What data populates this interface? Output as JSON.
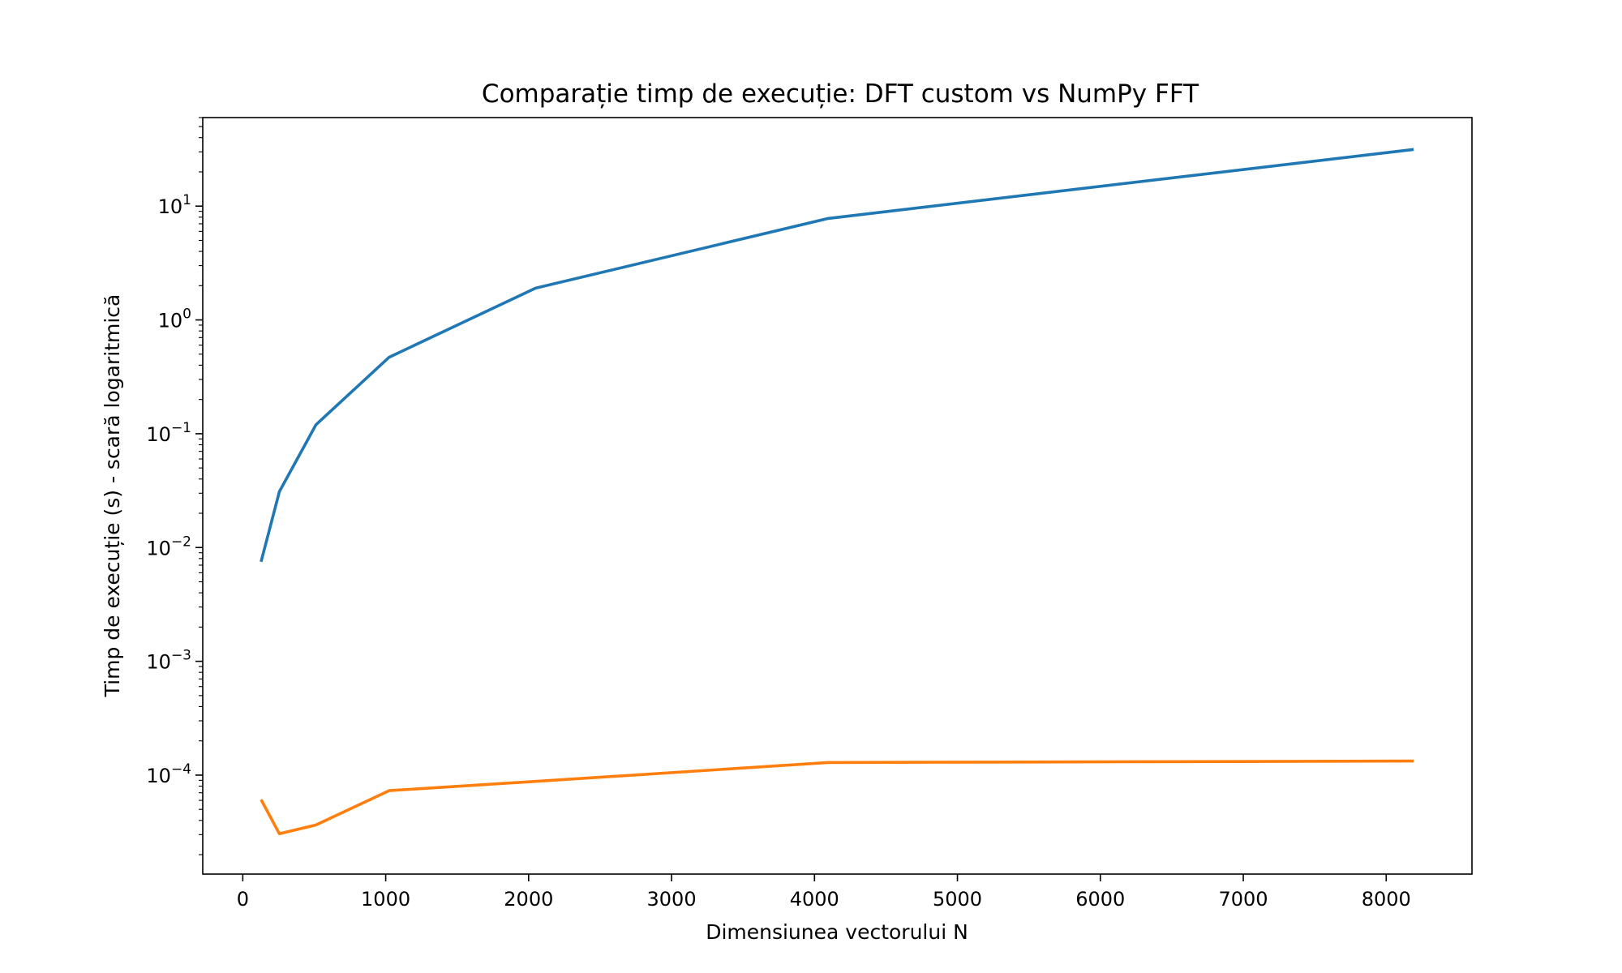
{
  "chart_data": {
    "type": "line",
    "title": "Comparație timp de execuție: DFT custom vs NumPy FFT",
    "xlabel": "Dimensiunea vectorului N",
    "ylabel": "Timp de execuție (s) - scară logaritmică",
    "xscale": "linear",
    "yscale": "log",
    "xlim": [
      -280,
      8600
    ],
    "ylim": [
      1.35e-05,
      60
    ],
    "xticks": [
      0,
      1000,
      2000,
      3000,
      4000,
      5000,
      6000,
      7000,
      8000
    ],
    "xtick_labels": [
      "0",
      "1000",
      "2000",
      "3000",
      "4000",
      "5000",
      "6000",
      "7000",
      "8000"
    ],
    "yticks": [
      0.0001,
      0.001,
      0.01,
      0.1,
      1,
      10
    ],
    "ytick_labels": [
      {
        "base": "10",
        "exp": "−4"
      },
      {
        "base": "10",
        "exp": "−3"
      },
      {
        "base": "10",
        "exp": "−2"
      },
      {
        "base": "10",
        "exp": "−1"
      },
      {
        "base": "10",
        "exp": "0"
      },
      {
        "base": "10",
        "exp": "1"
      }
    ],
    "grid": false,
    "legend": "none",
    "x": [
      128,
      256,
      512,
      1024,
      2048,
      4096,
      8192
    ],
    "series": [
      {
        "color": "#1f77b4",
        "values": [
          0.0075,
          0.031,
          0.12,
          0.47,
          1.9,
          7.8,
          31.5
        ]
      },
      {
        "color": "#ff7f0e",
        "values": [
          6.1e-05,
          3.05e-05,
          3.65e-05,
          7.3e-05,
          8.8e-05,
          0.000129,
          0.000133
        ]
      }
    ]
  }
}
